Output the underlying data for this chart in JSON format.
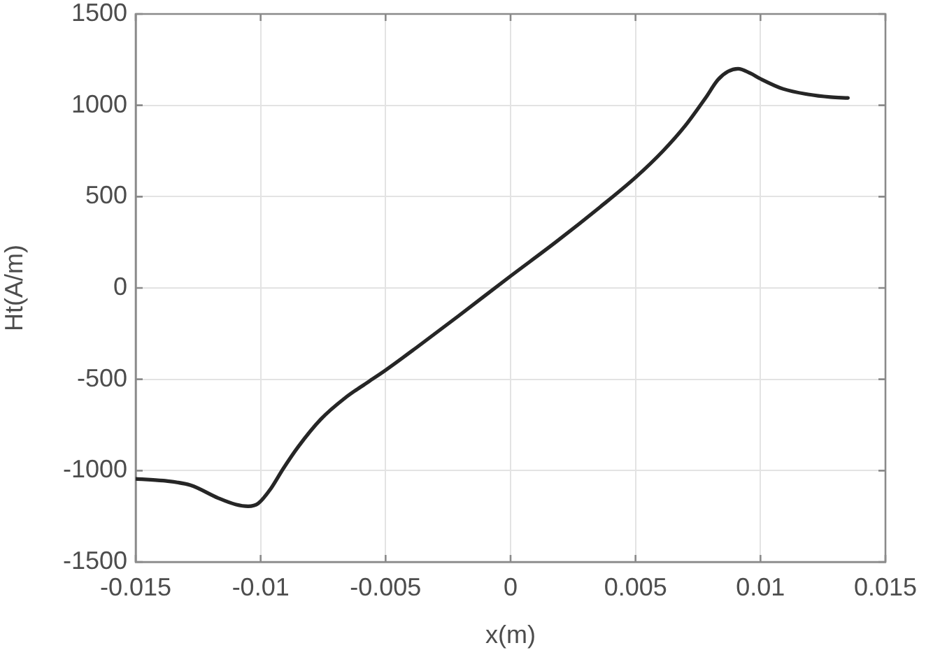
{
  "chart_data": {
    "type": "line",
    "xlabel": "x(m)",
    "ylabel": "Ht(A/m)",
    "x": [
      -0.015,
      -0.0139,
      -0.0128,
      -0.0117,
      -0.011,
      -0.0105,
      -0.0101,
      -0.0096,
      -0.0091,
      -0.0085,
      -0.0076,
      -0.0066,
      -0.0057,
      -0.005,
      -0.0038,
      -0.0021,
      0,
      0.0018,
      0.0036,
      0.005,
      0.0061,
      0.007,
      0.0078,
      0.0083,
      0.0087,
      0.0091,
      0.0096,
      0.01,
      0.0109,
      0.0119,
      0.0128,
      0.0135
    ],
    "series": [
      {
        "color": "#262626",
        "values": [
          -1045,
          -1055,
          -1080,
          -1150,
          -1185,
          -1195,
          -1180,
          -1100,
          -990,
          -870,
          -720,
          -600,
          -515,
          -450,
          -330,
          -155,
          65,
          250,
          445,
          605,
          750,
          890,
          1040,
          1140,
          1185,
          1200,
          1175,
          1145,
          1090,
          1060,
          1045,
          1040
        ]
      }
    ],
    "xlim": [
      -0.015,
      0.015
    ],
    "ylim": [
      -1500,
      1500
    ],
    "xticks": [
      -0.015,
      -0.01,
      -0.005,
      0,
      0.005,
      0.01,
      0.015
    ],
    "yticks": [
      -1500,
      -1000,
      -500,
      0,
      500,
      1000,
      1500
    ],
    "grid": true
  }
}
